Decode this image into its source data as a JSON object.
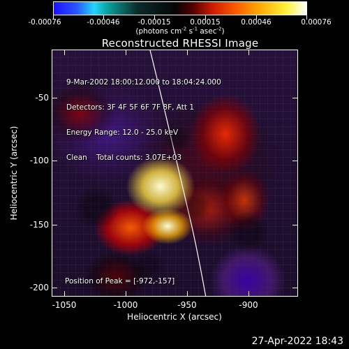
{
  "colorbar": {
    "ticks": [
      "-0.00076",
      "-0.00046",
      "-0.00015",
      "0.00015",
      "0.00046",
      "0.00076"
    ],
    "units_prefix": "(photons cm",
    "units_cm_exp": "-2",
    "units_s": " s",
    "units_s_exp": "-1",
    "units_asec": " asec",
    "units_asec_exp": "-2",
    "units_suffix": ")"
  },
  "title": "Reconstructed RHESSI Image",
  "annotations": {
    "time_range": "9-Mar-2002 18:00:12.000 to 18:04:24.000",
    "detectors": "Detectors: 3F 4F 5F 6F 7F 8F, Att 1",
    "energy_range": "Energy Range: 12.0 - 25.0 keV",
    "clean_counts": "Clean    Total counts: 3.07E+03",
    "peak_position": "Position of Peak = [-972,-157]"
  },
  "axes": {
    "x_ticks": [
      "-1050",
      "-1000",
      "-950",
      "-900"
    ],
    "y_ticks": [
      "-50",
      "-100",
      "-150",
      "-200"
    ],
    "x_title": "Heliocentric X (arcsec)",
    "y_title": "Heliocentric Y (arcsec)"
  },
  "timestamp": "27-Apr-2022 18:43"
}
